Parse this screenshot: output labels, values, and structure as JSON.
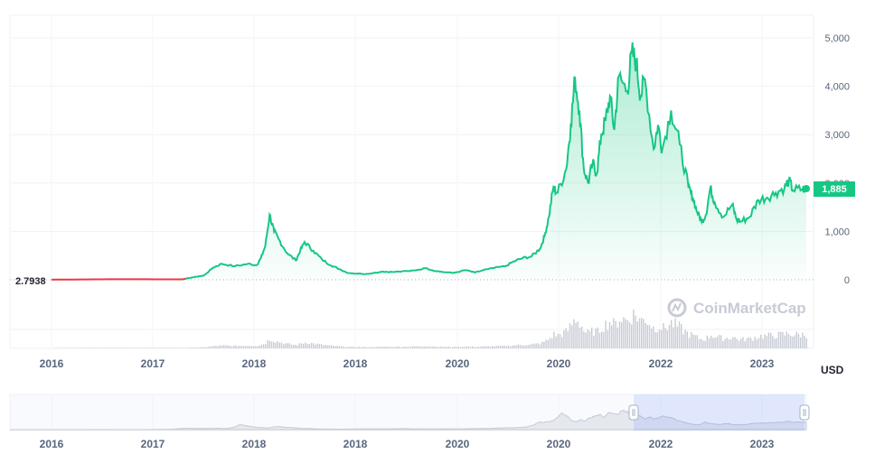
{
  "chart_data": {
    "type": "area",
    "unit_label": "USD",
    "y_ticks": [
      "0",
      "1,000",
      "2,000",
      "3,000",
      "4,000",
      "5,000"
    ],
    "ylim": [
      0,
      5000
    ],
    "x_tick_labels": [
      "2016",
      "2017",
      "2018",
      "2018",
      "2020",
      "2020",
      "2022",
      "2023"
    ],
    "navigator_tick_labels": [
      "2016",
      "2017",
      "2018",
      "2018",
      "2020",
      "2020",
      "2022",
      "2023"
    ],
    "start_value_label": "2.7938",
    "current_value_label": "1,885",
    "watermark": "CoinMarketCap",
    "grid": true,
    "series": [
      {
        "values": [
          [
            2015.6,
            2.79
          ],
          [
            2016.0,
            8
          ],
          [
            2016.5,
            12
          ],
          [
            2016.9,
            9
          ],
          [
            2017.1,
            10
          ],
          [
            2017.2,
            45
          ],
          [
            2017.35,
            90
          ],
          [
            2017.45,
            250
          ],
          [
            2017.55,
            330
          ],
          [
            2017.7,
            280
          ],
          [
            2017.85,
            330
          ],
          [
            2017.95,
            300
          ],
          [
            2018.0,
            450
          ],
          [
            2018.05,
            700
          ],
          [
            2018.1,
            1350
          ],
          [
            2018.15,
            1000
          ],
          [
            2018.2,
            850
          ],
          [
            2018.3,
            550
          ],
          [
            2018.4,
            400
          ],
          [
            2018.45,
            600
          ],
          [
            2018.5,
            780
          ],
          [
            2018.6,
            600
          ],
          [
            2018.7,
            420
          ],
          [
            2018.8,
            300
          ],
          [
            2018.9,
            220
          ],
          [
            2019.0,
            140
          ],
          [
            2019.2,
            120
          ],
          [
            2019.4,
            170
          ],
          [
            2019.5,
            160
          ],
          [
            2019.7,
            180
          ],
          [
            2019.9,
            240
          ],
          [
            2020.0,
            180
          ],
          [
            2020.2,
            140
          ],
          [
            2020.35,
            200
          ],
          [
            2020.45,
            150
          ],
          [
            2020.6,
            220
          ],
          [
            2020.8,
            280
          ],
          [
            2020.9,
            380
          ],
          [
            2021.0,
            450
          ],
          [
            2021.1,
            480
          ],
          [
            2021.2,
            650
          ],
          [
            2021.25,
            900
          ],
          [
            2021.3,
            1300
          ],
          [
            2021.35,
            1900
          ],
          [
            2021.4,
            1800
          ],
          [
            2021.5,
            2300
          ],
          [
            2021.55,
            3200
          ],
          [
            2021.6,
            4170
          ],
          [
            2021.65,
            3500
          ],
          [
            2021.7,
            2300
          ],
          [
            2021.75,
            2000
          ],
          [
            2021.8,
            2400
          ],
          [
            2021.85,
            2200
          ],
          [
            2021.9,
            3000
          ],
          [
            2021.95,
            3300
          ],
          [
            2022.0,
            3800
          ],
          [
            2022.05,
            3100
          ],
          [
            2022.1,
            4200
          ],
          [
            2022.2,
            3900
          ],
          [
            2022.25,
            4700
          ],
          [
            2022.3,
            4500
          ],
          [
            2022.35,
            3800
          ],
          [
            2022.4,
            4150
          ],
          [
            2022.5,
            2700
          ],
          [
            2022.55,
            3200
          ],
          [
            2022.6,
            2700
          ],
          [
            2022.7,
            3500
          ],
          [
            2022.8,
            2800
          ],
          [
            2022.9,
            1900
          ],
          [
            2022.95,
            1700
          ],
          [
            2023.0,
            1400
          ],
          [
            2023.05,
            1200
          ],
          [
            2023.1,
            1350
          ],
          [
            2023.15,
            1900
          ],
          [
            2023.2,
            1600
          ],
          [
            2023.3,
            1300
          ],
          [
            2023.4,
            1550
          ],
          [
            2023.45,
            1250
          ],
          [
            2023.5,
            1200
          ],
          [
            2023.6,
            1300
          ],
          [
            2023.7,
            1650
          ],
          [
            2023.8,
            1700
          ],
          [
            2023.9,
            1800
          ],
          [
            2024.0,
            1900
          ],
          [
            2024.05,
            2050
          ],
          [
            2024.1,
            1850
          ],
          [
            2024.2,
            1870
          ],
          [
            2024.25,
            1885
          ]
        ]
      }
    ]
  }
}
